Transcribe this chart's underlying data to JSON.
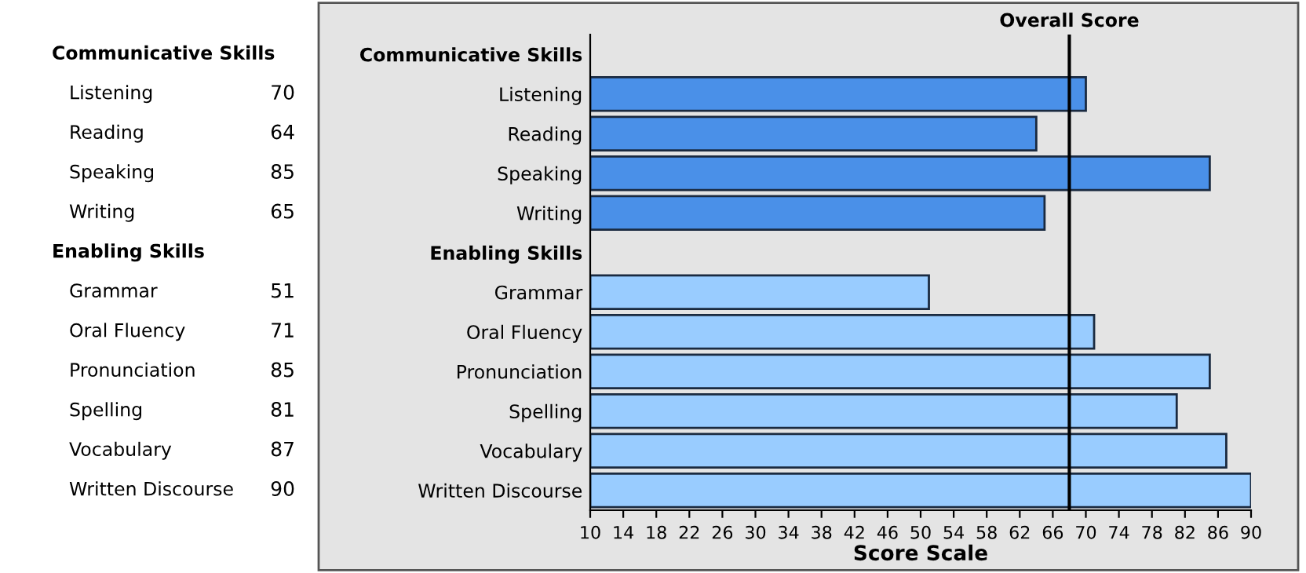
{
  "chart_data": {
    "type": "bar",
    "orientation": "horizontal",
    "xlabel": "Score Scale",
    "categories": [
      "Communicative Skills",
      "Listening",
      "Reading",
      "Speaking",
      "Writing",
      "Enabling Skills",
      "Grammar",
      "Oral Fluency",
      "Pronunciation",
      "Spelling",
      "Vocabulary",
      "Written Discourse"
    ],
    "values": [
      null,
      70,
      64,
      85,
      65,
      null,
      51,
      71,
      85,
      81,
      87,
      90
    ],
    "colors": [
      null,
      "#4a90e8",
      "#4a90e8",
      "#4a90e8",
      "#4a90e8",
      null,
      "#99ccff",
      "#99ccff",
      "#99ccff",
      "#99ccff",
      "#99ccff",
      "#99ccff"
    ],
    "xlim": [
      10,
      90
    ],
    "xticks": [
      10,
      14,
      18,
      22,
      26,
      30,
      34,
      38,
      42,
      46,
      50,
      54,
      58,
      62,
      66,
      70,
      74,
      78,
      82,
      86,
      90
    ],
    "ref_lines": [
      {
        "axis": "x",
        "value": 68,
        "label": "Overall Score",
        "color": "#000000"
      }
    ],
    "data_labels": true,
    "grid": false
  }
}
